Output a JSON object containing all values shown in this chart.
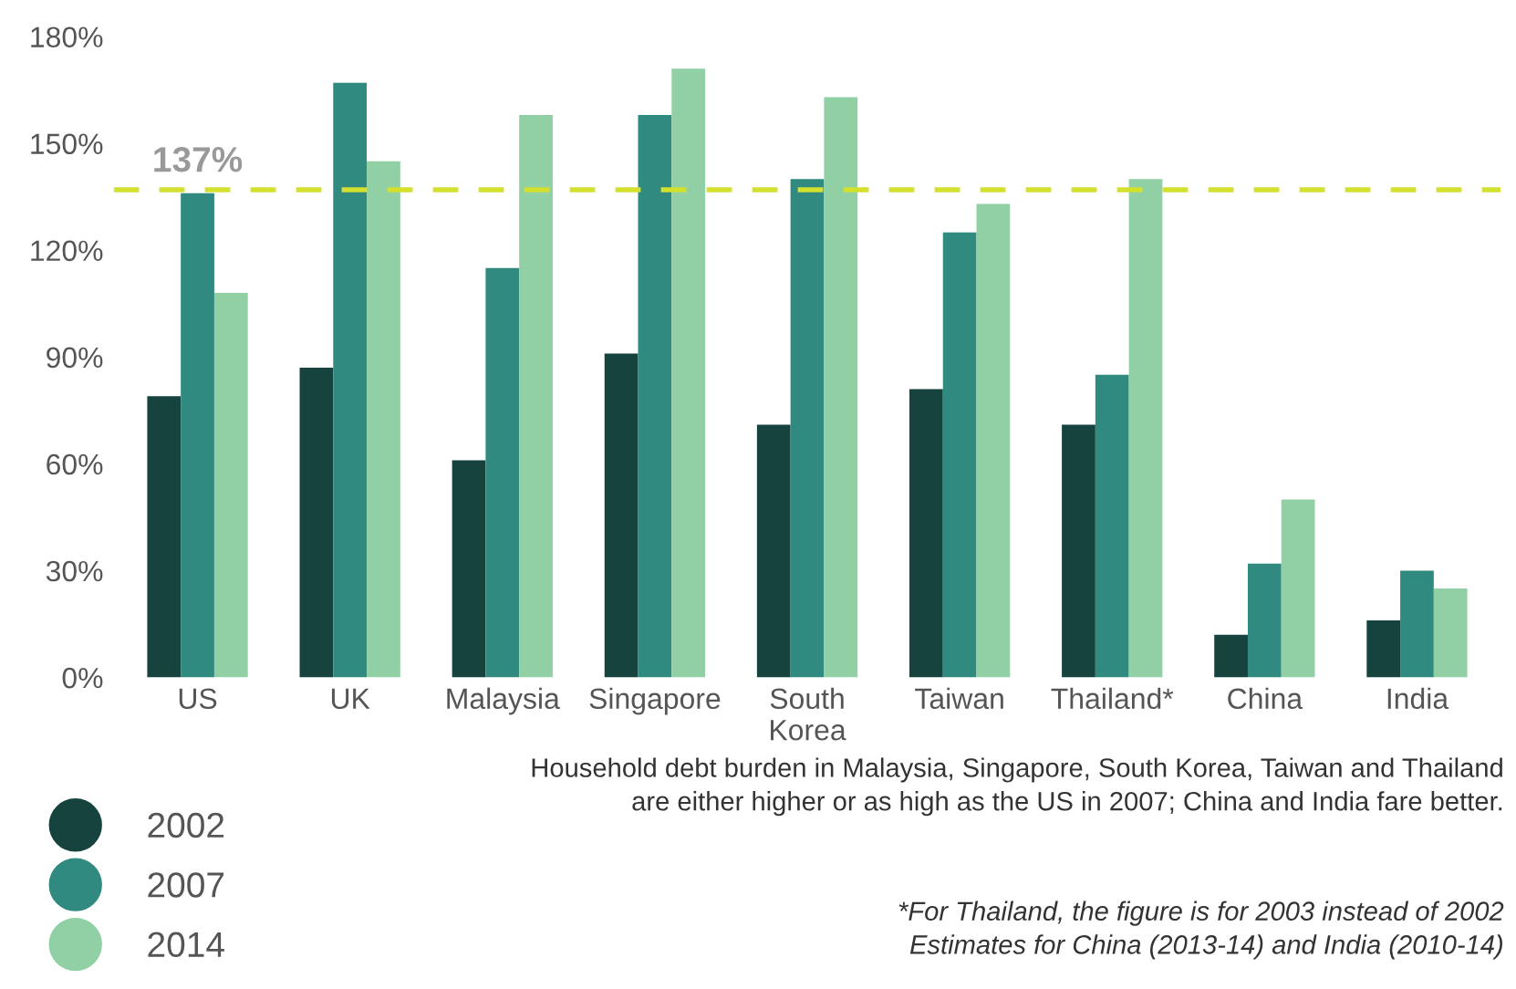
{
  "chart_data": {
    "type": "bar",
    "categories": [
      "US",
      "UK",
      "Malaysia",
      "Singapore",
      "South\nKorea",
      "Taiwan",
      "Thailand*",
      "China",
      "India"
    ],
    "series": [
      {
        "name": "2002",
        "color": "#16433e",
        "values": [
          79,
          87,
          61,
          91,
          71,
          81,
          71,
          12,
          16
        ]
      },
      {
        "name": "2007",
        "color": "#318a80",
        "values": [
          136,
          167,
          115,
          158,
          140,
          125,
          85,
          32,
          30
        ]
      },
      {
        "name": "2014",
        "color": "#90d0a4",
        "values": [
          108,
          145,
          158,
          171,
          163,
          133,
          140,
          50,
          25
        ]
      }
    ],
    "ylim": [
      0,
      180
    ],
    "yticks": [
      {
        "value": 0,
        "label": "0%"
      },
      {
        "value": 30,
        "label": "30%"
      },
      {
        "value": 60,
        "label": "60%"
      },
      {
        "value": 90,
        "label": "90%"
      },
      {
        "value": 120,
        "label": "120%"
      },
      {
        "value": 150,
        "label": "150%"
      },
      {
        "value": 180,
        "label": "180%"
      }
    ],
    "ref_lines": [
      {
        "axis": "y",
        "value": 137,
        "label": "137%",
        "color": "#d4e02e",
        "line_style": "dashed"
      }
    ],
    "grid": false,
    "legend": "bottom left",
    "annotations": [
      "Household debt burden in Malaysia, Singapore, South Korea, Taiwan and Thailand\nare either higher or as high as the US in 2007; China and India fare better.",
      "*For Thailand, the figure is for 2003 instead of 2002\nEstimates for China (2013-14) and India (2010-14)"
    ]
  }
}
